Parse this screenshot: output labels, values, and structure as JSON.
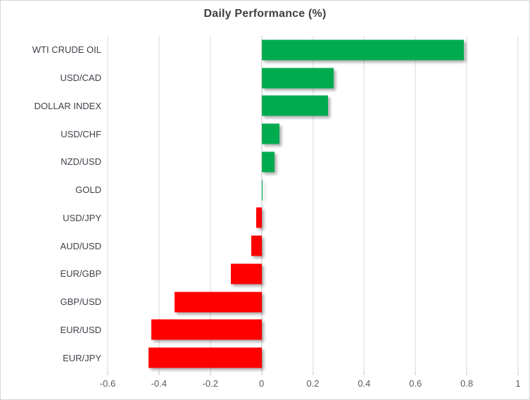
{
  "title": "Daily Performance (%)",
  "colors": {
    "positive": "#00ab4f",
    "negative": "#ff0000",
    "gridline": "#d9d9d9",
    "title_text": "#404040",
    "category_text": "#40424b",
    "axis_text": "#595959"
  },
  "chart_data": {
    "type": "bar",
    "orientation": "horizontal",
    "title": "Daily Performance (%)",
    "categories": [
      "WTI CRUDE OIL",
      "USD/CAD",
      "DOLLAR INDEX",
      "USD/CHF",
      "NZD/USD",
      "GOLD",
      "USD/JPY",
      "AUD/USD",
      "EUR/GBP",
      "GBP/USD",
      "EUR/USD",
      "EUR/JPY"
    ],
    "values": [
      0.79,
      0.28,
      0.26,
      0.07,
      0.05,
      0.0,
      -0.02,
      -0.04,
      -0.12,
      -0.34,
      -0.43,
      -0.44
    ],
    "xlabel": "",
    "ylabel": "",
    "xlim": [
      -0.6,
      1.0
    ],
    "x_ticks": [
      -0.6,
      -0.4,
      -0.2,
      0,
      0.2,
      0.4,
      0.6,
      0.8,
      1
    ],
    "x_tick_labels": [
      "-0.6",
      "-0.4",
      "-0.2",
      "0",
      "0.2",
      "0.4",
      "0.6",
      "0.8",
      "1"
    ],
    "grid": true,
    "legend": false,
    "bar_color_positive": "#00ab4f",
    "bar_color_negative": "#ff0000"
  }
}
